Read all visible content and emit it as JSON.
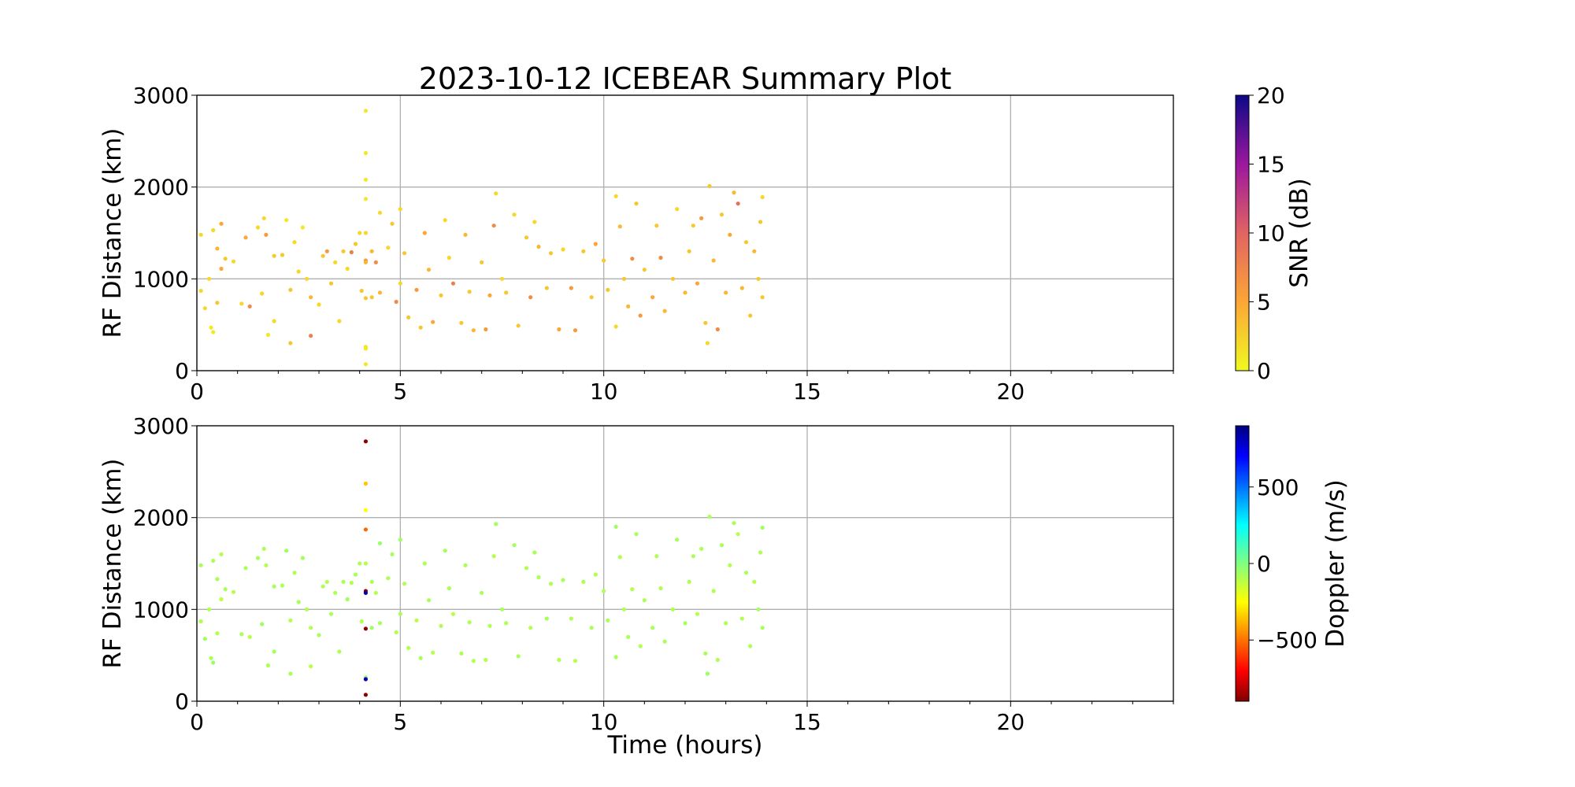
{
  "chart_data": {
    "type": "scatter",
    "title": "2023-10-12 ICEBEAR Summary Plot",
    "xlabel": "Time (hours)",
    "xlim": [
      0,
      24
    ],
    "xticks": [
      "0",
      "5",
      "10",
      "15",
      "20"
    ],
    "xminor_step": 1,
    "grid": true,
    "panels": [
      {
        "ylabel": "RF Distance (km)",
        "ylim": [
          0,
          3000
        ],
        "yticks": [
          "0",
          "1000",
          "2000",
          "3000"
        ],
        "color_by": "snr",
        "colorbar": {
          "label": "SNR (dB)",
          "range": [
            0,
            20
          ],
          "ticks": [
            "0",
            "5",
            "10",
            "15",
            "20"
          ],
          "colormap": "plasma_r"
        }
      },
      {
        "ylabel": "RF Distance (km)",
        "ylim": [
          0,
          3000
        ],
        "yticks": [
          "0",
          "1000",
          "2000",
          "3000"
        ],
        "color_by": "doppler",
        "colorbar": {
          "label": "Doppler (m/s)",
          "range": [
            -900,
            900
          ],
          "ticks": [
            "−500",
            "0",
            "500"
          ],
          "tick_values": [
            -500,
            0,
            500
          ],
          "colormap": "jet_r"
        }
      }
    ],
    "point_fields": [
      "time_hours",
      "rf_distance_km",
      "snr_db",
      "doppler_ms"
    ],
    "points": [
      [
        4.15,
        2830,
        1,
        -880
      ],
      [
        4.15,
        2370,
        1,
        -350
      ],
      [
        4.15,
        2080,
        1,
        -250
      ],
      [
        4.15,
        1870,
        1,
        -520
      ],
      [
        4.15,
        1500,
        2,
        -100
      ],
      [
        4.15,
        1200,
        6,
        -880
      ],
      [
        4.15,
        1180,
        4,
        850
      ],
      [
        4.15,
        790,
        3,
        -880
      ],
      [
        4.15,
        260,
        1,
        -50
      ],
      [
        4.15,
        240,
        1,
        800
      ],
      [
        4.15,
        70,
        1,
        -880
      ],
      [
        0.1,
        1480,
        2,
        -80
      ],
      [
        0.1,
        870,
        2,
        -90
      ],
      [
        0.2,
        680,
        2,
        -60
      ],
      [
        0.3,
        1000,
        2,
        -100
      ],
      [
        0.35,
        470,
        1,
        -80
      ],
      [
        0.4,
        420,
        1,
        -50
      ],
      [
        0.4,
        1530,
        2,
        -90
      ],
      [
        0.5,
        740,
        3,
        -100
      ],
      [
        0.5,
        1330,
        4,
        -80
      ],
      [
        0.6,
        1110,
        5,
        -120
      ],
      [
        0.6,
        1600,
        5,
        -100
      ],
      [
        0.7,
        1220,
        3,
        -80
      ],
      [
        0.9,
        1190,
        2,
        -100
      ],
      [
        1.1,
        730,
        2,
        -90
      ],
      [
        1.2,
        1450,
        5,
        -80
      ],
      [
        1.3,
        700,
        7,
        -110
      ],
      [
        1.5,
        1560,
        2,
        -80
      ],
      [
        1.6,
        840,
        2,
        -60
      ],
      [
        1.65,
        1660,
        2,
        -90
      ],
      [
        1.7,
        1480,
        6,
        -100
      ],
      [
        1.75,
        390,
        1,
        -90
      ],
      [
        1.9,
        1250,
        3,
        -80
      ],
      [
        1.9,
        540,
        2,
        -70
      ],
      [
        2.1,
        1260,
        3,
        -90
      ],
      [
        2.2,
        1640,
        1,
        -60
      ],
      [
        2.3,
        880,
        3,
        -100
      ],
      [
        2.3,
        300,
        3,
        -80
      ],
      [
        2.4,
        1400,
        2,
        -90
      ],
      [
        2.5,
        1080,
        2,
        -80
      ],
      [
        2.6,
        1560,
        1,
        -70
      ],
      [
        2.7,
        1000,
        2,
        -90
      ],
      [
        2.8,
        800,
        4,
        -100
      ],
      [
        2.8,
        380,
        8,
        -110
      ],
      [
        3.0,
        720,
        2,
        -80
      ],
      [
        3.1,
        1250,
        3,
        -90
      ],
      [
        3.2,
        1300,
        6,
        -100
      ],
      [
        3.3,
        950,
        3,
        -80
      ],
      [
        3.4,
        1180,
        2,
        -90
      ],
      [
        3.5,
        540,
        2,
        -90
      ],
      [
        3.6,
        1300,
        3,
        -80
      ],
      [
        3.7,
        1110,
        2,
        -60
      ],
      [
        3.8,
        1290,
        8,
        -100
      ],
      [
        3.9,
        1380,
        3,
        -80
      ],
      [
        4.0,
        1500,
        2,
        -90
      ],
      [
        4.05,
        870,
        3,
        -100
      ],
      [
        4.3,
        1300,
        4,
        -90
      ],
      [
        4.3,
        800,
        3,
        -60
      ],
      [
        4.4,
        1180,
        7,
        -100
      ],
      [
        4.5,
        1720,
        2,
        -50
      ],
      [
        4.5,
        850,
        4,
        -80
      ],
      [
        4.7,
        1340,
        2,
        -90
      ],
      [
        4.8,
        1600,
        3,
        -80
      ],
      [
        4.9,
        750,
        7,
        -100
      ],
      [
        5.0,
        1760,
        2,
        -60
      ],
      [
        5.0,
        950,
        2,
        -80
      ],
      [
        5.1,
        1280,
        3,
        -90
      ],
      [
        5.2,
        580,
        3,
        -100
      ],
      [
        5.4,
        880,
        6,
        -110
      ],
      [
        5.5,
        470,
        3,
        -80
      ],
      [
        5.6,
        1500,
        5,
        -90
      ],
      [
        5.7,
        1100,
        4,
        -80
      ],
      [
        5.8,
        530,
        5,
        -100
      ],
      [
        6.0,
        820,
        3,
        -90
      ],
      [
        6.1,
        1640,
        2,
        -70
      ],
      [
        6.2,
        1230,
        2,
        -80
      ],
      [
        6.3,
        950,
        8,
        -110
      ],
      [
        6.5,
        520,
        3,
        -90
      ],
      [
        6.6,
        1480,
        4,
        -80
      ],
      [
        6.7,
        860,
        3,
        -90
      ],
      [
        6.8,
        440,
        4,
        -100
      ],
      [
        7.0,
        1180,
        3,
        -80
      ],
      [
        7.1,
        450,
        6,
        -110
      ],
      [
        7.2,
        820,
        5,
        -90
      ],
      [
        7.3,
        1580,
        7,
        -100
      ],
      [
        7.35,
        1930,
        2,
        -60
      ],
      [
        7.5,
        1000,
        2,
        -80
      ],
      [
        7.6,
        850,
        3,
        -90
      ],
      [
        7.8,
        1700,
        2,
        -70
      ],
      [
        7.9,
        490,
        3,
        -80
      ],
      [
        8.1,
        1450,
        3,
        -90
      ],
      [
        8.2,
        800,
        7,
        -100
      ],
      [
        8.3,
        1620,
        2,
        -80
      ],
      [
        8.4,
        1350,
        4,
        -90
      ],
      [
        8.6,
        900,
        3,
        -80
      ],
      [
        8.7,
        1280,
        3,
        -90
      ],
      [
        8.9,
        450,
        5,
        -100
      ],
      [
        9.0,
        1320,
        2,
        -80
      ],
      [
        9.2,
        900,
        6,
        -100
      ],
      [
        9.3,
        440,
        6,
        -110
      ],
      [
        9.5,
        1300,
        3,
        -90
      ],
      [
        9.7,
        800,
        3,
        -80
      ],
      [
        9.8,
        1380,
        5,
        -100
      ],
      [
        10.0,
        1200,
        3,
        -90
      ],
      [
        10.1,
        880,
        3,
        -80
      ],
      [
        10.3,
        1900,
        2,
        -60
      ],
      [
        10.3,
        480,
        2,
        -80
      ],
      [
        10.4,
        1570,
        4,
        -90
      ],
      [
        10.5,
        1000,
        3,
        -100
      ],
      [
        10.6,
        700,
        4,
        -90
      ],
      [
        10.7,
        1220,
        7,
        -100
      ],
      [
        10.8,
        1820,
        3,
        -80
      ],
      [
        10.9,
        600,
        6,
        -100
      ],
      [
        11.0,
        1100,
        3,
        -90
      ],
      [
        11.2,
        800,
        5,
        -80
      ],
      [
        11.3,
        1580,
        3,
        -90
      ],
      [
        11.4,
        1230,
        7,
        -100
      ],
      [
        11.5,
        650,
        4,
        -80
      ],
      [
        11.7,
        1000,
        3,
        -90
      ],
      [
        11.8,
        1760,
        2,
        -70
      ],
      [
        12.0,
        850,
        4,
        -80
      ],
      [
        12.1,
        1300,
        3,
        -90
      ],
      [
        12.2,
        1580,
        3,
        -80
      ],
      [
        12.3,
        950,
        5,
        -100
      ],
      [
        12.4,
        1660,
        6,
        -90
      ],
      [
        12.5,
        520,
        3,
        -80
      ],
      [
        12.55,
        300,
        2,
        -60
      ],
      [
        12.6,
        2010,
        3,
        -80
      ],
      [
        12.7,
        1200,
        4,
        -90
      ],
      [
        12.8,
        450,
        7,
        -100
      ],
      [
        12.9,
        1700,
        3,
        -80
      ],
      [
        13.0,
        850,
        4,
        -90
      ],
      [
        13.1,
        1480,
        5,
        -100
      ],
      [
        13.2,
        1940,
        4,
        -80
      ],
      [
        13.3,
        1820,
        9,
        -110
      ],
      [
        13.4,
        900,
        4,
        -90
      ],
      [
        13.5,
        1400,
        3,
        -80
      ],
      [
        13.6,
        600,
        3,
        -90
      ],
      [
        13.7,
        1300,
        4,
        -100
      ],
      [
        13.8,
        1000,
        3,
        -80
      ],
      [
        13.85,
        1620,
        3,
        -90
      ],
      [
        13.9,
        1890,
        2,
        -70
      ],
      [
        13.9,
        800,
        3,
        -80
      ]
    ]
  }
}
